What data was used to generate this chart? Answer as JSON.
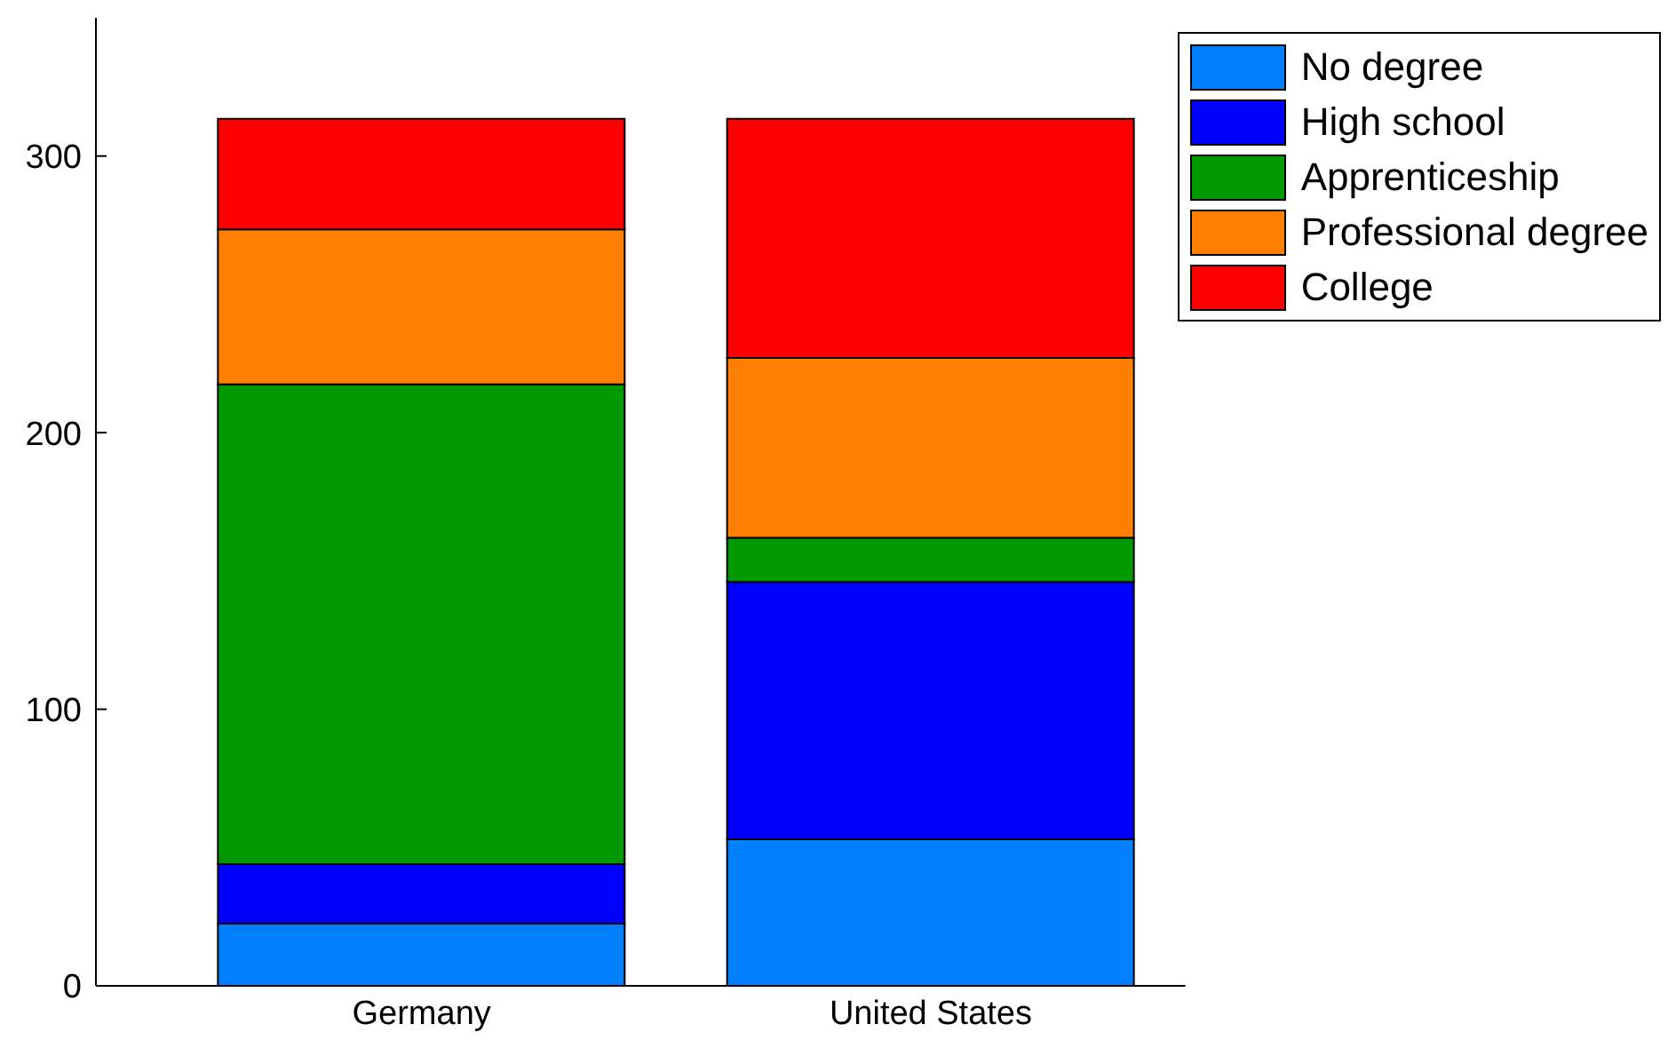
{
  "chart_data": {
    "type": "bar",
    "stacked": true,
    "categories": [
      "Germany",
      "United States"
    ],
    "series": [
      {
        "name": "No degree",
        "color": "#0080ff",
        "values": [
          22.5,
          53
        ]
      },
      {
        "name": "High school",
        "color": "#0000ff",
        "values": [
          21.5,
          93
        ]
      },
      {
        "name": "Apprenticeship",
        "color": "#009900",
        "values": [
          173.5,
          16
        ]
      },
      {
        "name": "Professional degree",
        "color": "#ff8000",
        "values": [
          56,
          65
        ]
      },
      {
        "name": "College",
        "color": "#ff0000",
        "values": [
          40,
          86.5
        ]
      }
    ],
    "ylim": [
      0,
      350
    ],
    "yticks": [
      0,
      100,
      200,
      300
    ],
    "grid": false,
    "legend": "top right"
  }
}
